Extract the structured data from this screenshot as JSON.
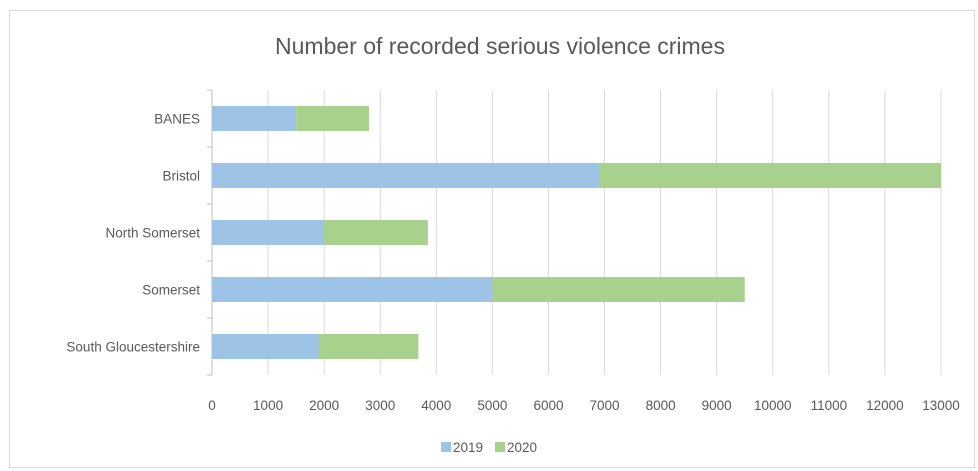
{
  "chart_data": {
    "type": "bar",
    "orientation": "horizontal",
    "stacked": true,
    "title": "Number of recorded serious violence crimes",
    "xlabel": "",
    "ylabel": "",
    "categories": [
      "BANES",
      "Bristol",
      "North Somerset",
      "Somerset",
      "South Gloucestershire"
    ],
    "series": [
      {
        "name": "2019",
        "values": [
          1500,
          6900,
          2000,
          5000,
          1900
        ],
        "color": "#9dc3e6"
      },
      {
        "name": "2020",
        "values": [
          1300,
          6100,
          1850,
          4500,
          1780
        ],
        "color": "#a9d18e"
      }
    ],
    "xlim": [
      0,
      13000
    ],
    "xticks": [
      "0",
      "1000",
      "2000",
      "3000",
      "4000",
      "5000",
      "6000",
      "7000",
      "8000",
      "9000",
      "10000",
      "11000",
      "12000",
      "13000"
    ],
    "grid": true,
    "legend": "bottom"
  }
}
